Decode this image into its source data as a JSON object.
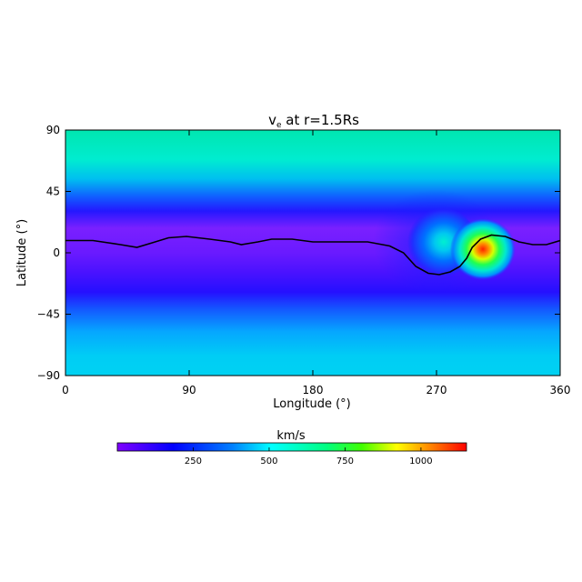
{
  "chart_data": {
    "type": "heatmap",
    "title_main": "v",
    "title_sub": "e",
    "title_rest": " at r=1.5Rs",
    "xlabel": "Longitude (°)",
    "ylabel": "Latitude (°)",
    "xlim": [
      0,
      360
    ],
    "ylim": [
      -90,
      90
    ],
    "xticks": [
      0,
      90,
      180,
      270,
      360
    ],
    "yticks": [
      90,
      45,
      0,
      -45,
      -90
    ],
    "colorbar": {
      "label": "km/s",
      "range": [
        0,
        1150
      ],
      "ticks": [
        250,
        500,
        750,
        1000
      ],
      "colormap": "rainbow (violet-blue-cyan-green-yellow-red)"
    },
    "neutral_line": [
      [
        0,
        9
      ],
      [
        20,
        9
      ],
      [
        40,
        6
      ],
      [
        52,
        4
      ],
      [
        62,
        7
      ],
      [
        75,
        11
      ],
      [
        88,
        12
      ],
      [
        105,
        10
      ],
      [
        120,
        8
      ],
      [
        128,
        6
      ],
      [
        140,
        8
      ],
      [
        150,
        10
      ],
      [
        165,
        10
      ],
      [
        180,
        8
      ],
      [
        200,
        8
      ],
      [
        220,
        8
      ],
      [
        236,
        5
      ],
      [
        246,
        0
      ],
      [
        255,
        -10
      ],
      [
        264,
        -15
      ],
      [
        272,
        -16
      ],
      [
        280,
        -14
      ],
      [
        287,
        -10
      ],
      [
        292,
        -4
      ],
      [
        296,
        4
      ],
      [
        302,
        10
      ],
      [
        310,
        13
      ],
      [
        320,
        12
      ],
      [
        330,
        8
      ],
      [
        340,
        6
      ],
      [
        350,
        6
      ],
      [
        360,
        9
      ]
    ],
    "features": [
      {
        "lon": 303,
        "lat": 4,
        "peak": 1080
      },
      {
        "lon": 275,
        "lat": 8,
        "peak": 480
      }
    ]
  }
}
